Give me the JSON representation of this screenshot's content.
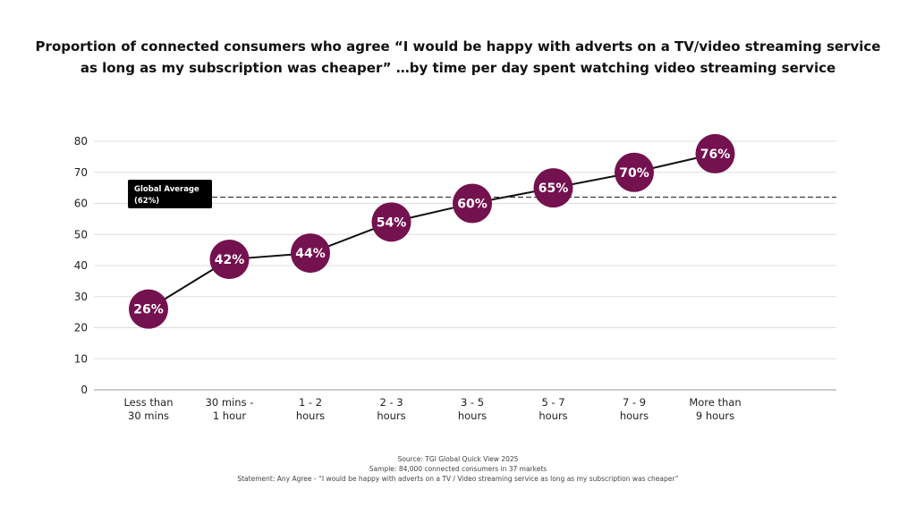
{
  "chart_data": {
    "type": "line",
    "title_lines": [
      "Proportion of connected consumers who agree “I would be happy with adverts on a TV/video streaming service",
      "as long as my subscription was cheaper” …by time per day spent watching video streaming service"
    ],
    "categories": [
      [
        "Less than",
        "30 mins"
      ],
      [
        "30 mins -",
        "1 hour"
      ],
      [
        "1 - 2",
        "hours"
      ],
      [
        "2 - 3",
        "hours"
      ],
      [
        "3 - 5",
        "hours"
      ],
      [
        "5 - 7",
        "hours"
      ],
      [
        "7 - 9",
        "hours"
      ],
      [
        "More than",
        "9 hours"
      ]
    ],
    "values": [
      26,
      42,
      44,
      54,
      60,
      65,
      70,
      76
    ],
    "data_labels": [
      "26%",
      "42%",
      "44%",
      "54%",
      "60%",
      "65%",
      "70%",
      "76%"
    ],
    "ylim": [
      0,
      80
    ],
    "yticks": [
      0,
      10,
      20,
      30,
      40,
      50,
      60,
      70,
      80
    ],
    "grid": "horizontal",
    "reference_line": {
      "value": 62,
      "label_lines": [
        "Global Average",
        "(62%)"
      ],
      "style": "dashed"
    },
    "colors": {
      "marker": "#74114f",
      "line": "#111111",
      "grid": "#dddddd",
      "reference_box": "#000000"
    }
  },
  "footer": {
    "source": "Source: TGI Global Quick View 2025",
    "sample": "Sample: 84,000 connected consumers in 37 markets",
    "statement": "Statement: Any Agree - “I would be happy with adverts on a TV / Video streaming service as long as my subscription was cheaper”"
  }
}
